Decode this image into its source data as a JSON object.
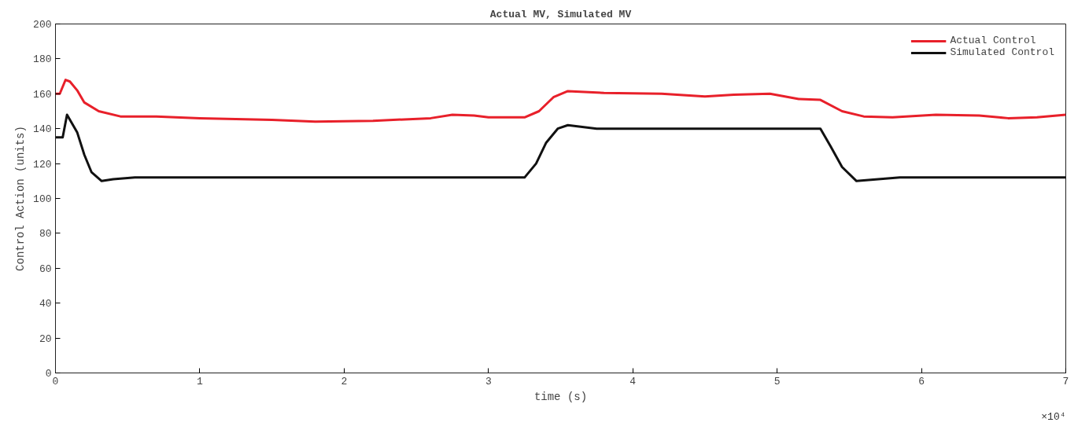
{
  "chart_data": {
    "type": "line",
    "title": "Actual MV, Simulated MV",
    "xlabel": "time (s)",
    "ylabel": "Control Action (units)",
    "annotations": [
      "×10⁴"
    ],
    "xlim": [
      0,
      7
    ],
    "ylim": [
      0,
      200
    ],
    "xticks": [
      0,
      1,
      2,
      3,
      4,
      5,
      6,
      7
    ],
    "yticks": [
      0,
      20,
      40,
      60,
      80,
      100,
      120,
      140,
      160,
      180,
      200
    ],
    "grid": false,
    "legend": "top right",
    "line_style": "solid",
    "series": [
      {
        "name": "Actual Control",
        "color": "#e8202a",
        "x": [
          0,
          0.03,
          0.07,
          0.1,
          0.15,
          0.2,
          0.3,
          0.45,
          0.7,
          1.0,
          1.5,
          1.8,
          2.2,
          2.6,
          2.75,
          2.9,
          3.0,
          3.25,
          3.35,
          3.45,
          3.55,
          3.8,
          4.2,
          4.5,
          4.7,
          4.95,
          5.15,
          5.3,
          5.45,
          5.6,
          5.8,
          6.1,
          6.4,
          6.6,
          6.8,
          7.0
        ],
        "values": [
          160,
          160,
          168,
          167,
          162,
          155,
          150,
          147,
          147,
          146,
          145,
          144,
          144.5,
          146,
          148,
          147.5,
          146.5,
          146.5,
          150,
          158,
          161.5,
          160.5,
          160,
          158.5,
          159.5,
          160,
          157,
          156.5,
          150,
          147,
          146.5,
          148,
          147.5,
          146,
          146.5,
          148
        ]
      },
      {
        "name": "Simulated Control",
        "color": "#111111",
        "x": [
          0,
          0.05,
          0.08,
          0.15,
          0.2,
          0.25,
          0.32,
          0.4,
          0.55,
          3.25,
          3.33,
          3.4,
          3.48,
          3.55,
          3.75,
          5.3,
          5.37,
          5.45,
          5.55,
          5.7,
          5.85,
          7.0
        ],
        "values": [
          135,
          135,
          148,
          138,
          125,
          115,
          110,
          111,
          112,
          112,
          120,
          132,
          140,
          142,
          140,
          140,
          130,
          118,
          110,
          111,
          112,
          112
        ]
      }
    ]
  }
}
